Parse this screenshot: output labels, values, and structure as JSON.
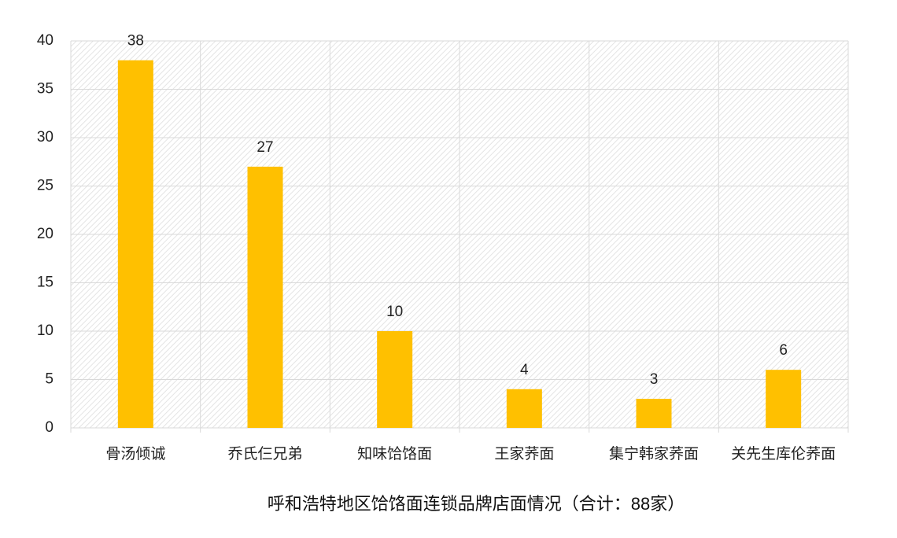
{
  "chart_data": {
    "type": "bar",
    "title": "呼和浩特地区饸饹面连锁品牌店面情况（合计：88家）",
    "categories": [
      "骨汤倾诚",
      "乔氏仨兄弟",
      "知味饸饹面",
      "王家荞面",
      "集宁韩家荞面",
      "关先生库伦荞面"
    ],
    "values": [
      38,
      27,
      10,
      4,
      3,
      6
    ],
    "color": "#ffc000",
    "ylim": [
      0,
      40
    ],
    "yticks": [
      0,
      5,
      10,
      15,
      20,
      25,
      30,
      35,
      40
    ],
    "grid": true
  }
}
